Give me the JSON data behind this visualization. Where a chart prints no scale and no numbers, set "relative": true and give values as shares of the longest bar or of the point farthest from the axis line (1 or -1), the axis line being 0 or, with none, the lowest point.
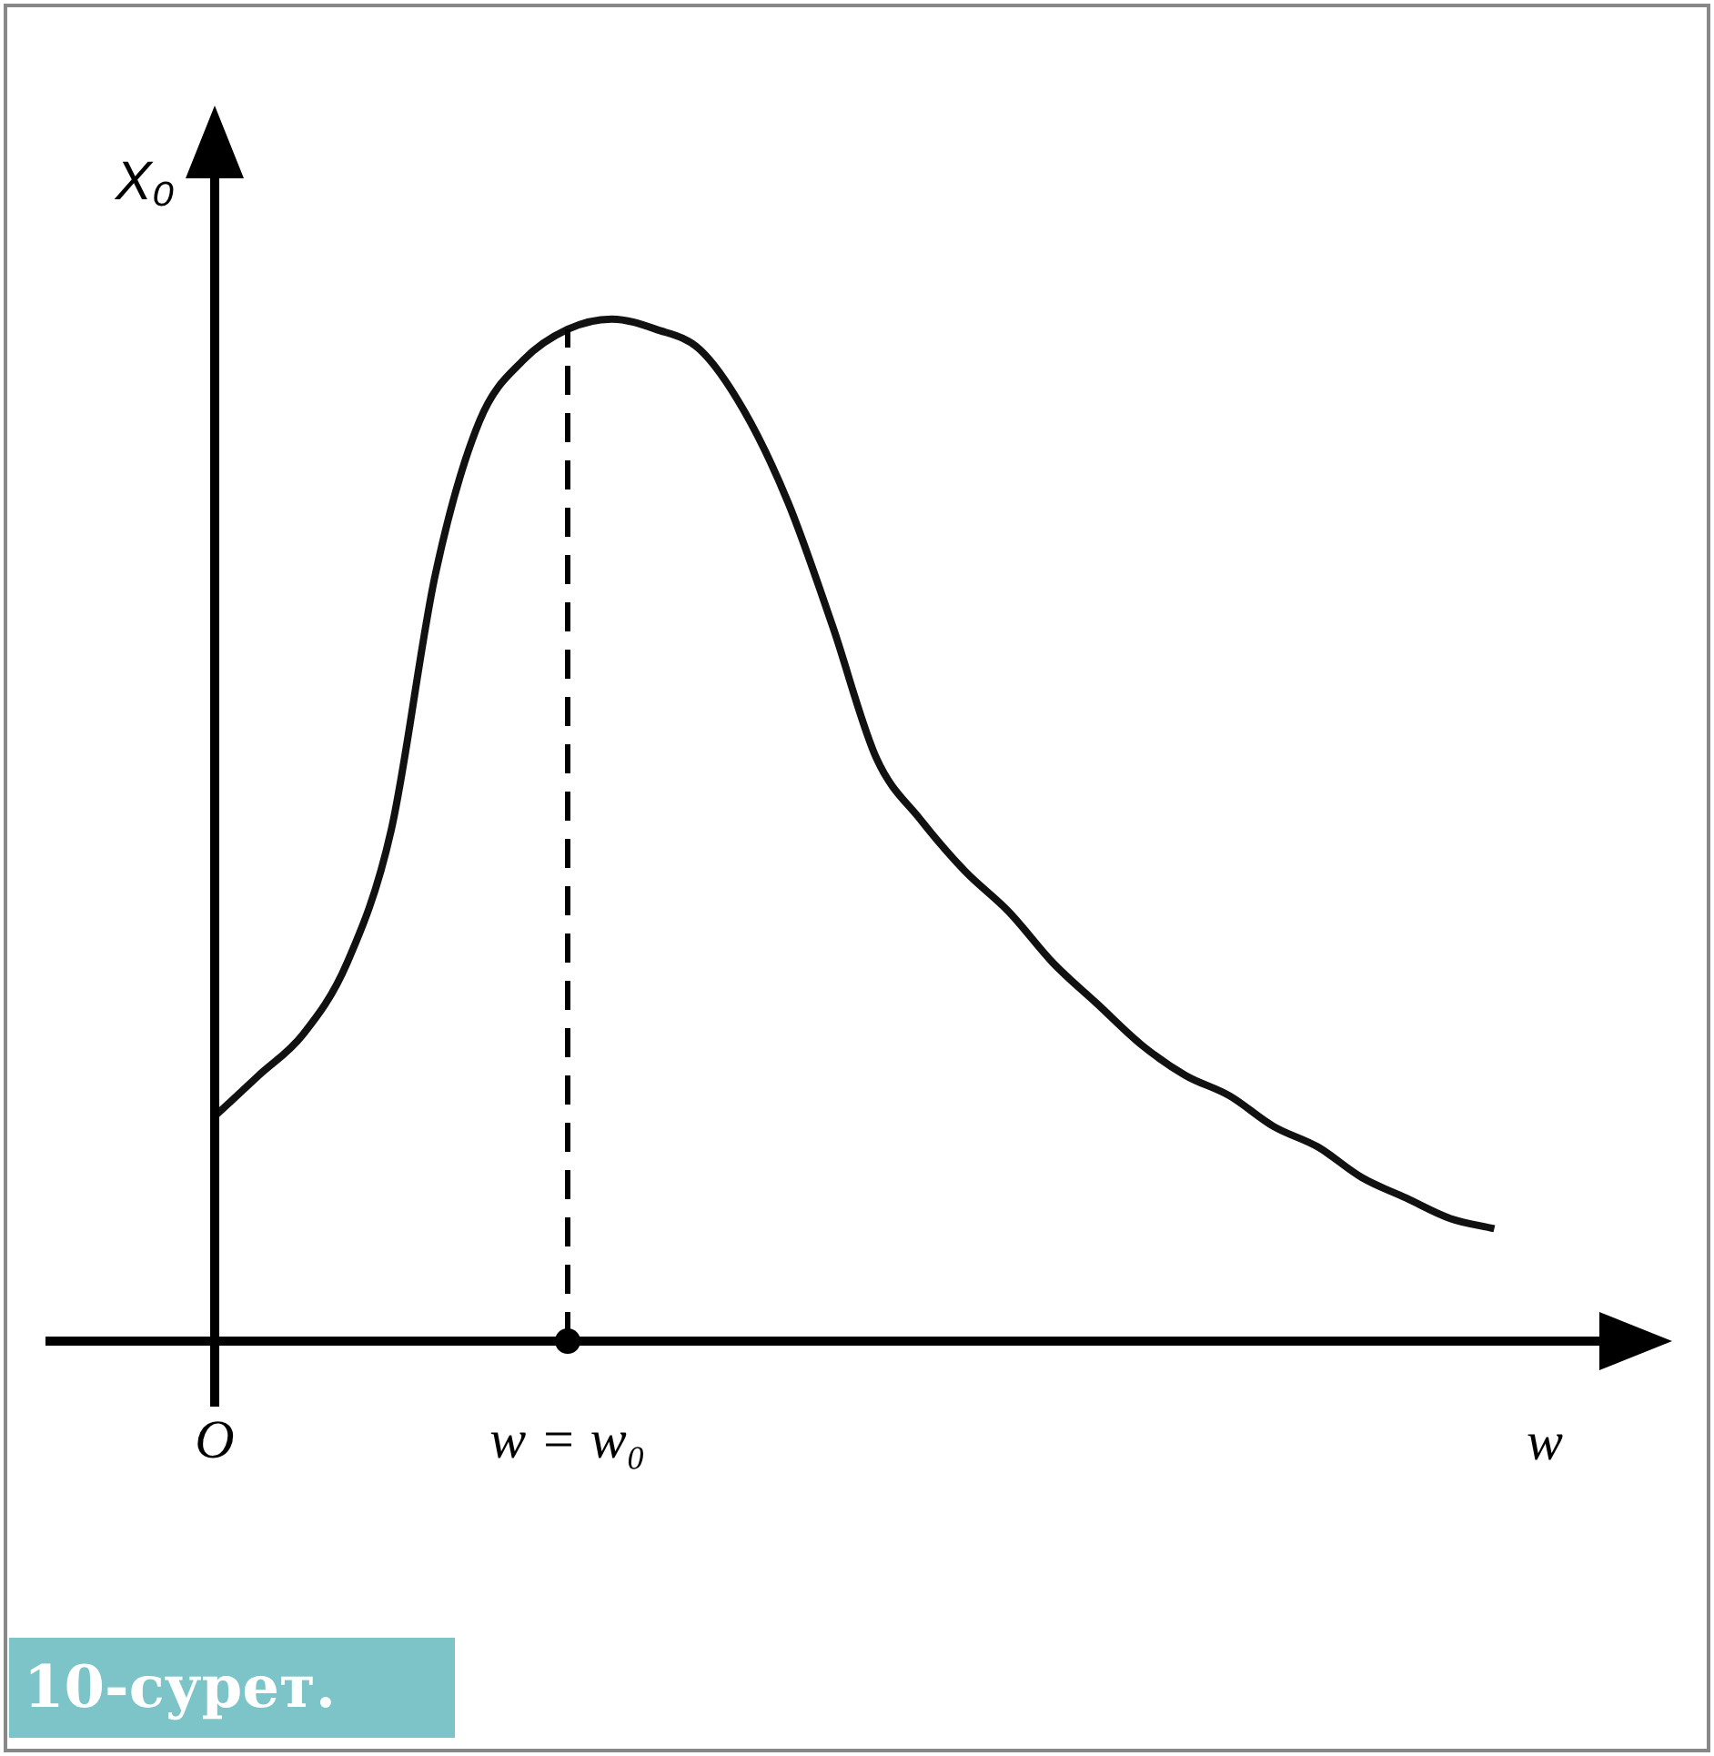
{
  "chart_data": {
    "type": "line",
    "relative": true,
    "ylabel": "X₀",
    "xlabel": "w",
    "marker": "none",
    "line_style": "solid",
    "color": "#111111",
    "categories": [
      "O",
      null,
      null,
      null,
      null,
      null,
      null,
      null,
      "w = w₀",
      null,
      null,
      null,
      null,
      null,
      null,
      null,
      null,
      null,
      null,
      null,
      null,
      null,
      null,
      null,
      null,
      null,
      null,
      null,
      null,
      null,
      null,
      null,
      null
    ],
    "values": [
      0.22,
      0.26,
      0.3,
      0.37,
      0.5,
      0.75,
      0.9,
      0.96,
      0.99,
      1.0,
      0.99,
      0.97,
      0.91,
      0.82,
      0.7,
      0.57,
      0.51,
      0.46,
      0.42,
      0.37,
      0.33,
      0.29,
      0.26,
      0.24,
      0.21,
      0.19,
      0.16,
      0.14,
      0.12,
      0.11,
      null,
      null,
      null
    ],
    "ref_lines": [
      {
        "axis": "x",
        "value": "w = w₀",
        "line_style": "dashed"
      }
    ],
    "annotations": [
      "10-сурет."
    ]
  }
}
